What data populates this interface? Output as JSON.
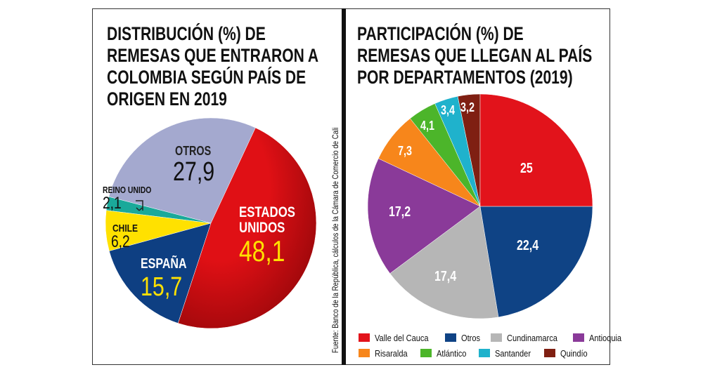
{
  "chart_data": [
    {
      "type": "pie",
      "title": "DISTRIBUCIÓN (%) DE REMESAS QUE ENTRARON A COLOMBIA SEGÚN PAÍS DE ORIGEN EN 2019",
      "title_lines": [
        "DISTRIBUCIÓN (%) DE",
        "REMESAS QUE ENTRARON A",
        "COLOMBIA SEGÚN PAÍS DE",
        "ORIGEN EN 2019"
      ],
      "slices": [
        {
          "label": "ESTADOS UNIDOS",
          "value": 48.1,
          "display": "48,1",
          "color": "#d40f14"
        },
        {
          "label": "ESPAÑA",
          "value": 15.7,
          "display": "15,7",
          "color": "#0e3f82"
        },
        {
          "label": "CHILE",
          "value": 6.2,
          "display": "6,2",
          "color": "#ffe100"
        },
        {
          "label": "REINO UNIDO",
          "value": 2.1,
          "display": "2,1",
          "color": "#1aa99a"
        },
        {
          "label": "OTROS",
          "value": 27.9,
          "display": "27,9",
          "color": "#a4a9cf"
        }
      ],
      "estados_line1": "ESTADOS",
      "estados_line2": "UNIDOS"
    },
    {
      "type": "pie",
      "title": "PARTICIPACIÓN (%) DE REMESAS QUE LLEGAN AL PAÍS POR DEPARTAMENTOS (2019)",
      "title_lines": [
        "PARTICIPACIÓN (%) DE",
        "REMESAS QUE LLEGAN AL PAÍS",
        "POR DEPARTAMENTOS (2019)"
      ],
      "legend": "bottom",
      "slices": [
        {
          "label": "Valle del Cauca",
          "value": 25,
          "display": "25",
          "color": "#e2131b"
        },
        {
          "label": "Otros",
          "value": 22.4,
          "display": "22,4",
          "color": "#0f4385"
        },
        {
          "label": "Cundinamarca",
          "value": 17.4,
          "display": "17,4",
          "color": "#b6b6b6"
        },
        {
          "label": "Antioquia",
          "value": 17.2,
          "display": "17,2",
          "color": "#8a3a99"
        },
        {
          "label": "Risaralda",
          "value": 7.3,
          "display": "7,3",
          "color": "#f7861b"
        },
        {
          "label": "Atlántico",
          "value": 4.1,
          "display": "4,1",
          "color": "#4cb52a"
        },
        {
          "label": "Santander",
          "value": 3.4,
          "display": "3,4",
          "color": "#1fb2cc"
        },
        {
          "label": "Quindío",
          "value": 3.2,
          "display": "3,2",
          "color": "#7f1f12"
        }
      ]
    }
  ],
  "source": "Fuente: Banco de la República, cálculos de la Cámara de Comercio de Cali"
}
